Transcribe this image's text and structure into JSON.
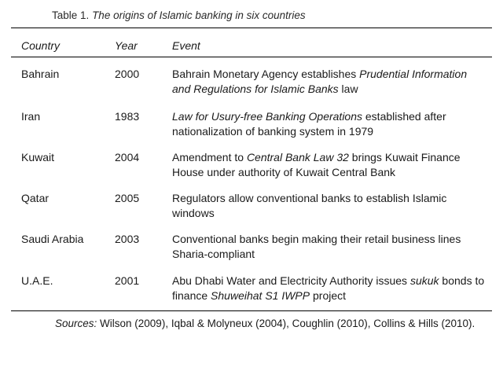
{
  "caption": {
    "label": "Table 1.",
    "title": "The origins of Islamic banking in six countries"
  },
  "columns": {
    "country": "Country",
    "year": "Year",
    "event": "Event"
  },
  "rows": [
    {
      "country": "Bahrain",
      "year": "2000",
      "event": [
        {
          "text": "Bahrain Monetary Agency establishes "
        },
        {
          "text": "Prudential Information and Regulations for Islamic Banks",
          "italic": true
        },
        {
          "text": " law"
        }
      ]
    },
    {
      "country": "Iran",
      "year": "1983",
      "event": [
        {
          "text": "Law for Usury-free Banking Operations",
          "italic": true
        },
        {
          "text": " established after nationalization of banking system in 1979"
        }
      ]
    },
    {
      "country": "Kuwait",
      "year": "2004",
      "event": [
        {
          "text": "Amendment to "
        },
        {
          "text": "Central Bank Law 32",
          "italic": true
        },
        {
          "text": " brings Kuwait Finance House under authority of Kuwait Central Bank"
        }
      ]
    },
    {
      "country": "Qatar",
      "year": "2005",
      "event": [
        {
          "text": "Regulators allow conventional banks to establish Islamic windows"
        }
      ]
    },
    {
      "country": "Saudi Arabia",
      "year": "2003",
      "event": [
        {
          "text": "Conventional banks begin making their retail business lines Sharia-compliant"
        }
      ]
    },
    {
      "country": "U.A.E.",
      "year": "2001",
      "event": [
        {
          "text": "Abu Dhabi Water and Electricity Authority issues "
        },
        {
          "text": "sukuk",
          "italic": true
        },
        {
          "text": " bonds to finance "
        },
        {
          "text": "Shuweihat S1 IWPP",
          "italic": true
        },
        {
          "text": " project"
        }
      ]
    }
  ],
  "sources": {
    "label": "Sources:",
    "text": " Wilson (2009), Iqbal & Molyneux (2004), Coughlin (2010), Collins & Hills (2010)."
  }
}
